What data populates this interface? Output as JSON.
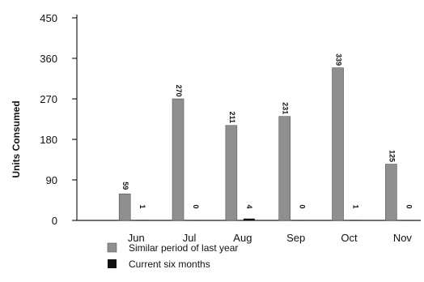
{
  "chart_data": {
    "type": "bar",
    "ylabel": "Units Consumed",
    "ylim": [
      0,
      450
    ],
    "yticks": [
      0,
      90,
      180,
      270,
      360,
      450
    ],
    "categories": [
      "Jun",
      "Jul",
      "Aug",
      "Sep",
      "Oct",
      "Nov"
    ],
    "series": [
      {
        "name": "Similar period of last year",
        "values": [
          59,
          270,
          211,
          231,
          339,
          125
        ],
        "labels": [
          "59",
          "270",
          "211",
          "231",
          "339",
          "125"
        ],
        "color": "#8f8f8f"
      },
      {
        "name": "Current six months",
        "values": [
          1,
          0,
          4,
          0,
          1,
          0
        ],
        "labels": [
          "1",
          "0",
          "4",
          "0",
          "1",
          "0"
        ],
        "color": "#111111"
      }
    ],
    "grid": false,
    "legend_position": "bottom-left"
  }
}
